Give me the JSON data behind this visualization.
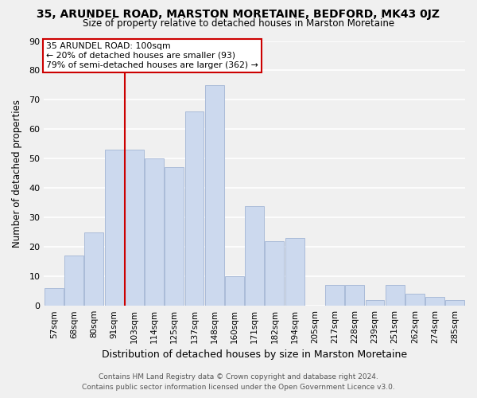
{
  "title": "35, ARUNDEL ROAD, MARSTON MORETAINE, BEDFORD, MK43 0JZ",
  "subtitle": "Size of property relative to detached houses in Marston Moretaine",
  "xlabel": "Distribution of detached houses by size in Marston Moretaine",
  "ylabel": "Number of detached properties",
  "bar_labels": [
    "57sqm",
    "68sqm",
    "80sqm",
    "91sqm",
    "103sqm",
    "114sqm",
    "125sqm",
    "137sqm",
    "148sqm",
    "160sqm",
    "171sqm",
    "182sqm",
    "194sqm",
    "205sqm",
    "217sqm",
    "228sqm",
    "239sqm",
    "251sqm",
    "262sqm",
    "274sqm",
    "285sqm"
  ],
  "bar_values": [
    6,
    17,
    25,
    53,
    53,
    50,
    47,
    66,
    75,
    10,
    34,
    22,
    23,
    0,
    7,
    7,
    2,
    7,
    4,
    3,
    2
  ],
  "bar_color": "#ccd9ee",
  "bar_edge_color": "#aabbd8",
  "vline_x_index": 4,
  "vline_color": "#cc0000",
  "annotation_lines": [
    "35 ARUNDEL ROAD: 100sqm",
    "← 20% of detached houses are smaller (93)",
    "79% of semi-detached houses are larger (362) →"
  ],
  "annotation_box_color": "#ffffff",
  "annotation_box_edge": "#cc0000",
  "ylim": [
    0,
    90
  ],
  "yticks": [
    0,
    10,
    20,
    30,
    40,
    50,
    60,
    70,
    80,
    90
  ],
  "footer_line1": "Contains HM Land Registry data © Crown copyright and database right 2024.",
  "footer_line2": "Contains public sector information licensed under the Open Government Licence v3.0.",
  "background_color": "#f0f0f0",
  "grid_color": "#ffffff"
}
